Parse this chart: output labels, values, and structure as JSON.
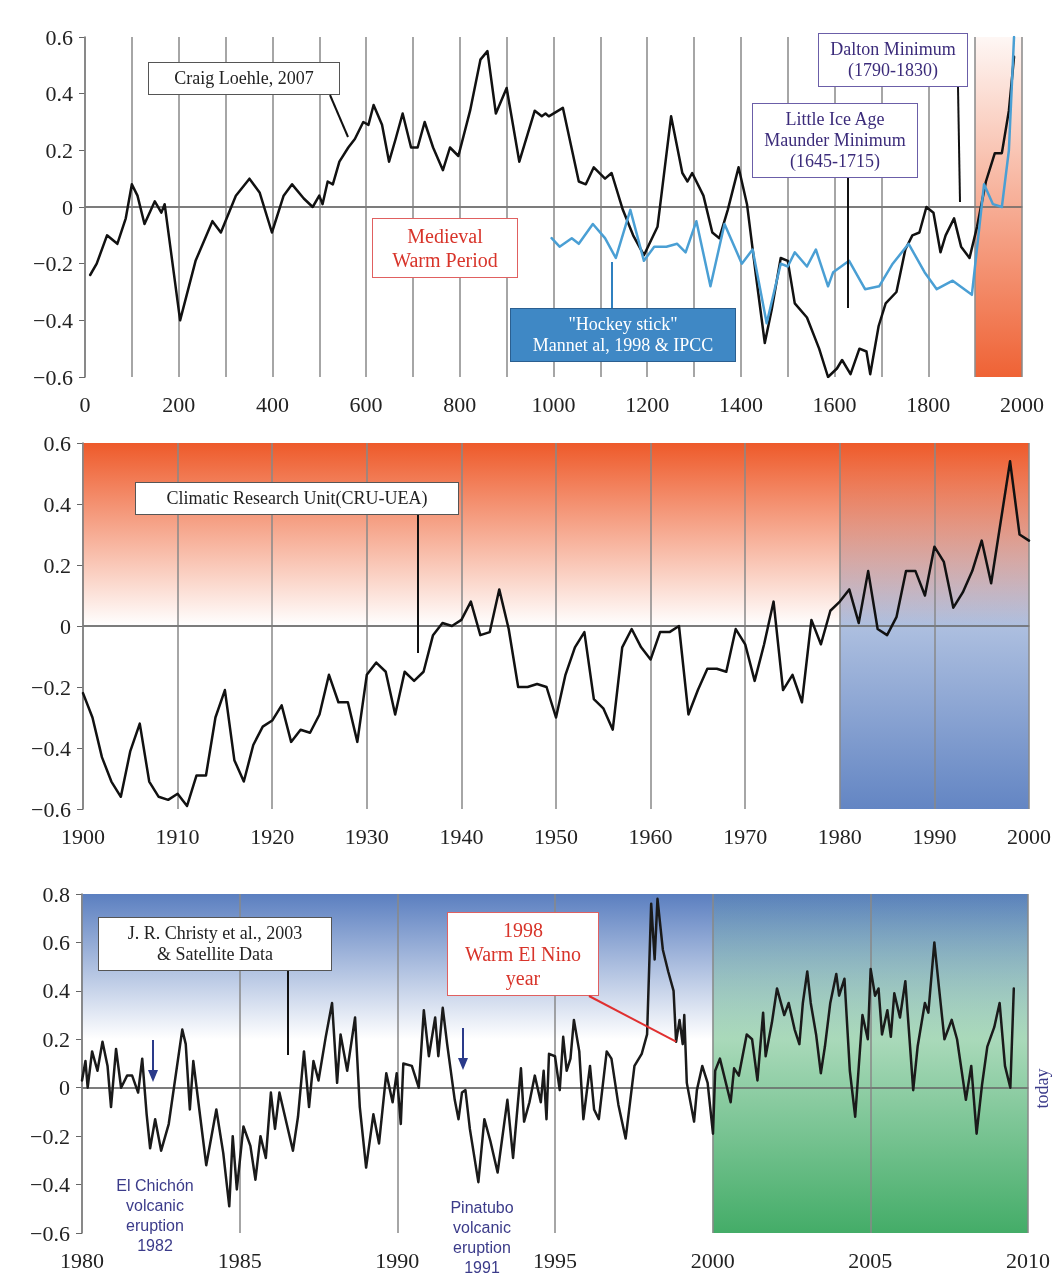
{
  "chart_data": [
    {
      "type": "line",
      "xlim": [
        0,
        2000
      ],
      "ylim": [
        -0.6,
        0.6
      ],
      "xticks": [
        0,
        {
          "value": 100,
          "label": null
        },
        200,
        {
          "value": 300,
          "label": null
        },
        400,
        {
          "value": 500,
          "label": null
        },
        600,
        {
          "value": 700,
          "label": null
        },
        800,
        {
          "value": 900,
          "label": null
        },
        1000,
        {
          "value": 1100,
          "label": null
        },
        1200,
        {
          "value": 1300,
          "label": null
        },
        1400,
        {
          "value": 1500,
          "label": null
        },
        1600,
        {
          "value": 1700,
          "label": null
        },
        1800,
        {
          "value": 1900,
          "label": null
        },
        2000
      ],
      "yticks": [
        -0.6,
        -0.4,
        -0.2,
        0,
        0.2,
        0.4,
        0.6
      ],
      "grid": "x",
      "marker": "none",
      "series": [
        {
          "color": "#111111",
          "x": [
            11,
            25,
            47,
            69,
            87,
            100,
            112,
            127,
            149,
            163,
            170,
            203,
            236,
            272,
            290,
            322,
            351,
            373,
            399,
            424,
            442,
            467,
            486,
            500,
            507,
            518,
            529,
            543,
            562,
            576,
            594,
            605,
            616,
            634,
            649,
            663,
            678,
            696,
            710,
            725,
            743,
            764,
            779,
            797,
            822,
            844,
            859,
            877,
            900,
            927,
            960,
            975,
            983,
            990,
            1020,
            1054,
            1069,
            1086,
            1110,
            1124,
            1148,
            1170,
            1193,
            1222,
            1251,
            1275,
            1286,
            1296,
            1320,
            1339,
            1354,
            1372,
            1395,
            1413,
            1432,
            1451,
            1466,
            1485,
            1500,
            1515,
            1541,
            1567,
            1586,
            1605,
            1616,
            1634,
            1653,
            1668,
            1676,
            1694,
            1709,
            1732,
            1751,
            1766,
            1781,
            1796,
            1811,
            1826,
            1837,
            1855,
            1870,
            1888,
            1904,
            1923,
            1942,
            1957,
            1972,
            1983
          ],
          "values": [
            -0.24,
            -0.2,
            -0.1,
            -0.13,
            -0.04,
            0.08,
            0.04,
            -0.06,
            0.02,
            -0.02,
            0.01,
            -0.4,
            -0.19,
            -0.05,
            -0.09,
            0.04,
            0.1,
            0.05,
            -0.09,
            0.04,
            0.08,
            0.03,
            0.0,
            0.04,
            0.01,
            0.09,
            0.08,
            0.16,
            0.21,
            0.24,
            0.3,
            0.29,
            0.36,
            0.29,
            0.16,
            0.24,
            0.33,
            0.21,
            0.21,
            0.3,
            0.21,
            0.13,
            0.21,
            0.18,
            0.34,
            0.52,
            0.55,
            0.33,
            0.42,
            0.16,
            0.34,
            0.32,
            0.33,
            0.32,
            0.35,
            0.09,
            0.08,
            0.14,
            0.1,
            0.12,
            -0.01,
            -0.1,
            -0.17,
            -0.07,
            0.32,
            0.12,
            0.09,
            0.12,
            0.04,
            -0.09,
            -0.11,
            -0.01,
            0.14,
            0.01,
            -0.24,
            -0.48,
            -0.36,
            -0.18,
            -0.19,
            -0.34,
            -0.39,
            -0.5,
            -0.6,
            -0.57,
            -0.54,
            -0.59,
            -0.5,
            -0.51,
            -0.59,
            -0.42,
            -0.34,
            -0.3,
            -0.15,
            -0.1,
            -0.09,
            0.0,
            -0.02,
            -0.16,
            -0.1,
            -0.04,
            -0.14,
            -0.18,
            -0.07,
            0.09,
            0.19,
            0.19,
            0.34,
            0.53
          ]
        },
        {
          "color": "#4a9fd4",
          "x": [
            996,
            1013,
            1039,
            1054,
            1084,
            1110,
            1133,
            1164,
            1193,
            1215,
            1241,
            1264,
            1282,
            1305,
            1335,
            1365,
            1402,
            1425,
            1455,
            1485,
            1500,
            1515,
            1541,
            1560,
            1586,
            1597,
            1631,
            1665,
            1695,
            1724,
            1758,
            1792,
            1818,
            1852,
            1893,
            1919,
            1938,
            1957,
            1972,
            1983
          ],
          "values": [
            -0.11,
            -0.14,
            -0.11,
            -0.13,
            -0.06,
            -0.11,
            -0.18,
            -0.01,
            -0.19,
            -0.14,
            -0.14,
            -0.13,
            -0.16,
            -0.05,
            -0.28,
            -0.06,
            -0.2,
            -0.15,
            -0.41,
            -0.2,
            -0.21,
            -0.16,
            -0.21,
            -0.15,
            -0.28,
            -0.23,
            -0.19,
            -0.29,
            -0.28,
            -0.2,
            -0.13,
            -0.23,
            -0.29,
            -0.26,
            -0.31,
            0.08,
            0.01,
            0.0,
            0.2,
            0.6
          ]
        }
      ],
      "ref_lines": [
        {
          "axis": "y",
          "value": 0
        }
      ],
      "bands": [
        {
          "axis": "x",
          "from": 1900,
          "to": 2000,
          "color": "#ee5a2a"
        }
      ],
      "annotations": [
        "Craig Loehle, 2007",
        "Medieval\nWarm Period",
        "\"Hockey stick\"\nMannet al, 1998 & IPCC",
        "Little Ice Age\nMaunder Minimum\n(1645-1715)",
        "Dalton Minimum\n(1790-1830)"
      ]
    },
    {
      "type": "line",
      "xlim": [
        1900,
        2000
      ],
      "ylim": [
        -0.6,
        0.6
      ],
      "xticks": [
        1900,
        1910,
        1920,
        1930,
        1940,
        1950,
        1960,
        1970,
        1980,
        1990,
        2000
      ],
      "yticks": [
        -0.6,
        -0.4,
        -0.2,
        0,
        0.2,
        0.4,
        0.6
      ],
      "grid": "x",
      "marker": "none",
      "series": [
        {
          "color": "#111111",
          "x": [
            1900,
            1901,
            1902,
            1903,
            1904,
            1905,
            1906,
            1907,
            1908,
            1909,
            1910,
            1911,
            1912,
            1913,
            1914,
            1915,
            1916,
            1917,
            1918,
            1919,
            1920,
            1921,
            1922,
            1923,
            1924,
            1925,
            1926,
            1927,
            1928,
            1929,
            1930,
            1931,
            1932,
            1933,
            1934,
            1935,
            1936,
            1937,
            1938,
            1939,
            1940,
            1941,
            1942,
            1943,
            1944,
            1945,
            1946,
            1947,
            1948,
            1949,
            1950,
            1951,
            1952,
            1953,
            1954,
            1955,
            1956,
            1957,
            1958,
            1959,
            1960,
            1961,
            1962,
            1963,
            1964,
            1965,
            1966,
            1967,
            1968,
            1969,
            1970,
            1971,
            1972,
            1973,
            1974,
            1975,
            1976,
            1977,
            1978,
            1979,
            1980,
            1981,
            1982,
            1983,
            1984,
            1985,
            1986,
            1987,
            1988,
            1989,
            1990,
            1991,
            1992,
            1993,
            1994,
            1995,
            1996,
            1997,
            1998,
            1999,
            2000
          ],
          "values": [
            -0.22,
            -0.3,
            -0.43,
            -0.51,
            -0.56,
            -0.41,
            -0.32,
            -0.51,
            -0.56,
            -0.57,
            -0.55,
            -0.59,
            -0.49,
            -0.49,
            -0.3,
            -0.21,
            -0.44,
            -0.51,
            -0.39,
            -0.33,
            -0.31,
            -0.26,
            -0.38,
            -0.34,
            -0.35,
            -0.29,
            -0.16,
            -0.25,
            -0.25,
            -0.38,
            -0.16,
            -0.12,
            -0.15,
            -0.29,
            -0.15,
            -0.18,
            -0.15,
            -0.03,
            0.01,
            0.0,
            0.02,
            0.08,
            -0.03,
            -0.02,
            0.12,
            -0.01,
            -0.2,
            -0.2,
            -0.19,
            -0.2,
            -0.3,
            -0.16,
            -0.07,
            -0.02,
            -0.24,
            -0.27,
            -0.34,
            -0.07,
            -0.01,
            -0.07,
            -0.11,
            -0.02,
            -0.02,
            0.0,
            -0.29,
            -0.21,
            -0.14,
            -0.14,
            -0.15,
            -0.01,
            -0.06,
            -0.18,
            -0.06,
            0.08,
            -0.21,
            -0.16,
            -0.25,
            0.02,
            -0.06,
            0.05,
            0.08,
            0.12,
            0.01,
            0.18,
            -0.01,
            -0.03,
            0.03,
            0.18,
            0.18,
            0.1,
            0.26,
            0.21,
            0.06,
            0.11,
            0.18,
            0.28,
            0.14,
            0.34,
            0.54,
            0.3,
            0.28
          ]
        }
      ],
      "ref_lines": [
        {
          "axis": "y",
          "value": 0
        }
      ],
      "bands": [
        {
          "axis": "x",
          "from": 1980,
          "to": 2000,
          "color": "#5b7fc0"
        },
        {
          "axis": "y",
          "from": 0,
          "to": 0.6,
          "color": "#ee5a2a"
        }
      ],
      "annotations": [
        "Climatic Research Unit(CRU-UEA)"
      ]
    },
    {
      "type": "line",
      "xlim": [
        1980,
        2010
      ],
      "ylim": [
        -0.6,
        0.8
      ],
      "xticks": [
        1980,
        1985,
        1990,
        1995,
        2000,
        2005,
        2010
      ],
      "yticks": [
        -0.6,
        -0.4,
        -0.2,
        0,
        0.2,
        0.4,
        0.6,
        0.8
      ],
      "grid": "x",
      "marker": "none",
      "series": [
        {
          "color": "#1a1a1a",
          "x": [
            1980.0,
            1980.11,
            1980.18,
            1980.32,
            1980.49,
            1980.65,
            1980.81,
            1980.92,
            1981.08,
            1981.24,
            1981.43,
            1981.59,
            1981.78,
            1981.91,
            1982.05,
            1982.16,
            1982.32,
            1982.51,
            1982.75,
            1983.18,
            1983.29,
            1983.42,
            1983.53,
            1983.72,
            1983.94,
            1984.26,
            1984.48,
            1984.67,
            1984.78,
            1984.91,
            1985.12,
            1985.34,
            1985.5,
            1985.66,
            1985.83,
            1985.99,
            1986.12,
            1986.26,
            1986.69,
            1986.85,
            1987.04,
            1987.2,
            1987.34,
            1987.5,
            1987.73,
            1987.93,
            1988.09,
            1988.2,
            1988.41,
            1988.66,
            1988.81,
            1989.01,
            1989.24,
            1989.42,
            1989.65,
            1989.85,
            1989.98,
            1990.11,
            1990.19,
            1990.46,
            1990.68,
            1990.84,
            1991.0,
            1991.2,
            1991.3,
            1991.44,
            1991.58,
            1991.82,
            1991.94,
            1992.05,
            1992.16,
            1992.3,
            1992.57,
            1992.76,
            1992.95,
            1993.18,
            1993.49,
            1993.67,
            1993.92,
            1994.02,
            1994.19,
            1994.36,
            1994.55,
            1994.64,
            1994.73,
            1994.81,
            1995.0,
            1995.15,
            1995.26,
            1995.37,
            1995.49,
            1995.6,
            1995.77,
            1995.9,
            1996.11,
            1996.24,
            1996.39,
            1996.64,
            1996.79,
            1997.01,
            1997.24,
            1997.52,
            1997.75,
            1997.92,
            1998.05,
            1998.16,
            1998.25,
            1998.42,
            1998.59,
            1998.76,
            1998.84,
            1998.95,
            1999.05,
            1999.1,
            1999.18,
            1999.41,
            1999.5,
            1999.67,
            1999.84,
            2000.01,
            2000.08,
            2000.23,
            2000.57,
            2000.68,
            2000.83,
            2001.08,
            2001.25,
            2001.42,
            2001.6,
            2001.68,
            2001.88,
            2002.04,
            2002.27,
            2002.41,
            2002.6,
            2002.75,
            2002.86,
            2003.0,
            2003.11,
            2003.28,
            2003.43,
            2003.56,
            2003.73,
            2003.92,
            2004.01,
            2004.18,
            2004.35,
            2004.52,
            2004.75,
            2004.92,
            2005.01,
            2005.15,
            2005.26,
            2005.37,
            2005.54,
            2005.65,
            2005.76,
            2005.94,
            2006.11,
            2006.36,
            2006.5,
            2006.73,
            2006.84,
            2007.03,
            2007.18,
            2007.35,
            2007.58,
            2007.75,
            2008.03,
            2008.2,
            2008.37,
            2008.54,
            2008.71,
            2008.93,
            2009.1,
            2009.27,
            2009.44,
            2009.55
          ],
          "values": [
            0.03,
            0.11,
            0.0,
            0.15,
            0.07,
            0.19,
            0.09,
            -0.08,
            0.16,
            0.0,
            0.05,
            0.05,
            -0.02,
            0.12,
            -0.11,
            -0.25,
            -0.13,
            -0.26,
            -0.15,
            0.24,
            0.18,
            -0.09,
            0.11,
            -0.09,
            -0.32,
            -0.09,
            -0.27,
            -0.49,
            -0.2,
            -0.42,
            -0.16,
            -0.24,
            -0.38,
            -0.2,
            -0.29,
            -0.02,
            -0.17,
            -0.02,
            -0.26,
            -0.12,
            0.15,
            -0.08,
            0.11,
            0.03,
            0.21,
            0.35,
            0.02,
            0.22,
            0.07,
            0.29,
            -0.08,
            -0.33,
            -0.11,
            -0.23,
            0.06,
            -0.06,
            0.06,
            -0.15,
            0.1,
            0.09,
            0.0,
            0.32,
            0.13,
            0.29,
            0.13,
            0.33,
            0.18,
            -0.05,
            -0.13,
            -0.02,
            -0.01,
            -0.17,
            -0.39,
            -0.13,
            -0.22,
            -0.35,
            -0.05,
            -0.29,
            0.08,
            -0.14,
            -0.06,
            0.05,
            -0.06,
            0.07,
            -0.13,
            0.14,
            0.13,
            -0.01,
            0.21,
            0.07,
            0.12,
            0.28,
            0.15,
            -0.13,
            0.09,
            -0.09,
            -0.13,
            0.15,
            0.12,
            -0.07,
            -0.21,
            0.09,
            0.14,
            0.22,
            0.76,
            0.53,
            0.78,
            0.57,
            0.48,
            0.4,
            0.19,
            0.28,
            0.18,
            0.3,
            0.02,
            -0.14,
            -0.01,
            0.09,
            0.02,
            -0.19,
            0.07,
            0.12,
            -0.06,
            0.08,
            0.05,
            0.22,
            0.2,
            0.03,
            0.31,
            0.13,
            0.27,
            0.41,
            0.3,
            0.35,
            0.24,
            0.18,
            0.35,
            0.48,
            0.35,
            0.22,
            0.06,
            0.17,
            0.35,
            0.47,
            0.38,
            0.45,
            0.07,
            -0.12,
            0.3,
            0.2,
            0.49,
            0.38,
            0.41,
            0.22,
            0.32,
            0.21,
            0.39,
            0.29,
            0.44,
            -0.01,
            0.17,
            0.35,
            0.31,
            0.6,
            0.41,
            0.2,
            0.28,
            0.2,
            -0.05,
            0.09,
            -0.19,
            0.01,
            0.17,
            0.25,
            0.35,
            0.09,
            0.0,
            0.41
          ]
        }
      ],
      "ref_lines": [
        {
          "axis": "y",
          "value": 0
        }
      ],
      "bands": [
        {
          "axis": "y",
          "from": 0.2,
          "to": 0.8,
          "color": "#5b7fc0"
        },
        {
          "axis": "x",
          "from": 2000,
          "to": 2010,
          "color": "#3aa860"
        }
      ],
      "annotations": [
        "J. R. Christy et al., 2003\n& Satellite Data",
        {
          "text": "1998\nWarm El Nino\nyear",
          "x": 1998.84,
          "y": 0.19
        },
        "El Chichón\nvolcanic\neruption\n1982",
        "Pinatubo\nvolcanic\neruption\n1991",
        "today"
      ]
    }
  ]
}
